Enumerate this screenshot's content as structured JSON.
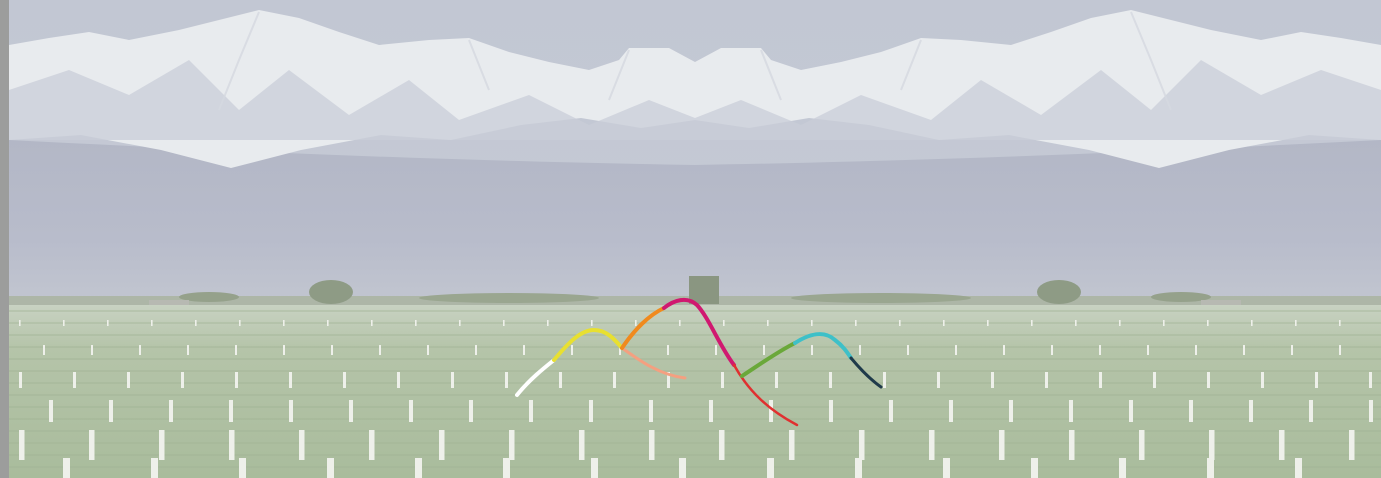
{
  "scene": {
    "description_colors": {
      "sky": "#c3c8d3",
      "snow": "#eef0f2",
      "mountain_shadow": "#b2b8c4",
      "haze": "#b9bdcb",
      "field": "#b8c7ae",
      "field_dark": "#9fb493",
      "post": "#e9ece6"
    },
    "ribbon_colors": [
      "#ffffff",
      "#e8e030",
      "#f4a080",
      "#f08a1e",
      "#d01870",
      "#e03030",
      "#6aa83a",
      "#3ec0c8",
      "#1f3a4a"
    ]
  }
}
